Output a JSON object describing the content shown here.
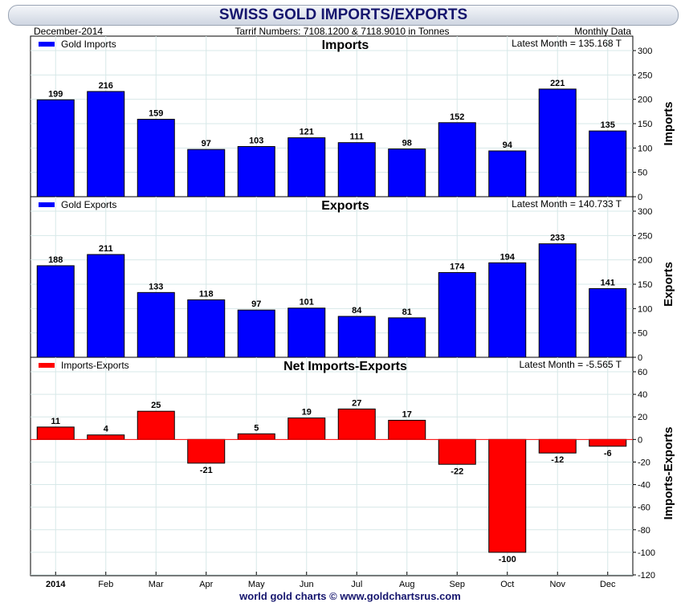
{
  "header": {
    "title": "SWISS GOLD IMPORTS/EXPORTS",
    "date": "December-2014",
    "subtitle": "Tarrif Numbers: 7108.1200 & 7118.9010 in Tonnes",
    "frequency": "Monthly Data",
    "footer": "world gold charts © www.goldchartsrus.com"
  },
  "colors": {
    "blue": "#0000ff",
    "red": "#ff0000",
    "grid": "#d7e8e8"
  },
  "chart_data": [
    {
      "type": "bar",
      "title": "Imports",
      "ylabel": "Imports",
      "legend": "Gold Imports",
      "latest": "Latest Month = 135.168 T",
      "categories": [
        "2014",
        "Feb",
        "Mar",
        "Apr",
        "May",
        "Jun",
        "Jul",
        "Aug",
        "Sep",
        "Oct",
        "Nov",
        "Dec"
      ],
      "values": [
        199,
        216,
        159,
        97,
        103,
        121,
        111,
        98,
        152,
        94,
        221,
        135
      ],
      "labels": [
        "199",
        "216",
        "159",
        "97",
        "103",
        "121",
        "111",
        "98",
        "152",
        "94",
        "221",
        "135"
      ],
      "ylim": [
        0,
        300
      ],
      "yticks": [
        0,
        50,
        100,
        150,
        200,
        250,
        300
      ],
      "color": "#0000ff",
      "legend_position": "top-left"
    },
    {
      "type": "bar",
      "title": "Exports",
      "ylabel": "Exports",
      "legend": "Gold Exports",
      "latest": "Latest Month = 140.733 T",
      "categories": [
        "2014",
        "Feb",
        "Mar",
        "Apr",
        "May",
        "Jun",
        "Jul",
        "Aug",
        "Sep",
        "Oct",
        "Nov",
        "Dec"
      ],
      "values": [
        188,
        211,
        133,
        118,
        97,
        101,
        84,
        81,
        174,
        194,
        233,
        141
      ],
      "labels": [
        "188",
        "211",
        "133",
        "118",
        "97",
        "101",
        "84",
        "81",
        "174",
        "194",
        "233",
        "141"
      ],
      "ylim": [
        0,
        300
      ],
      "yticks": [
        0,
        50,
        100,
        150,
        200,
        250,
        300
      ],
      "color": "#0000ff",
      "legend_position": "top-left"
    },
    {
      "type": "bar",
      "title": "Net Imports-Exports",
      "ylabel": "Imports-Exports",
      "legend": "Imports-Exports",
      "latest": "Latest Month = -5.565 T",
      "categories": [
        "2014",
        "Feb",
        "Mar",
        "Apr",
        "May",
        "Jun",
        "Jul",
        "Aug",
        "Sep",
        "Oct",
        "Nov",
        "Dec"
      ],
      "values": [
        11,
        4,
        25,
        -21,
        5,
        19,
        27,
        17,
        -22,
        -100,
        -12,
        -6
      ],
      "labels": [
        "11",
        "4",
        "25",
        "-21",
        "5",
        "19",
        "27",
        "17",
        "-22",
        "-100",
        "-12",
        "-6"
      ],
      "ylim": [
        -120,
        60
      ],
      "yticks": [
        -120,
        -100,
        -80,
        -60,
        -40,
        -20,
        0,
        20,
        40,
        60
      ],
      "color": "#ff0000",
      "legend_position": "top-left"
    }
  ]
}
